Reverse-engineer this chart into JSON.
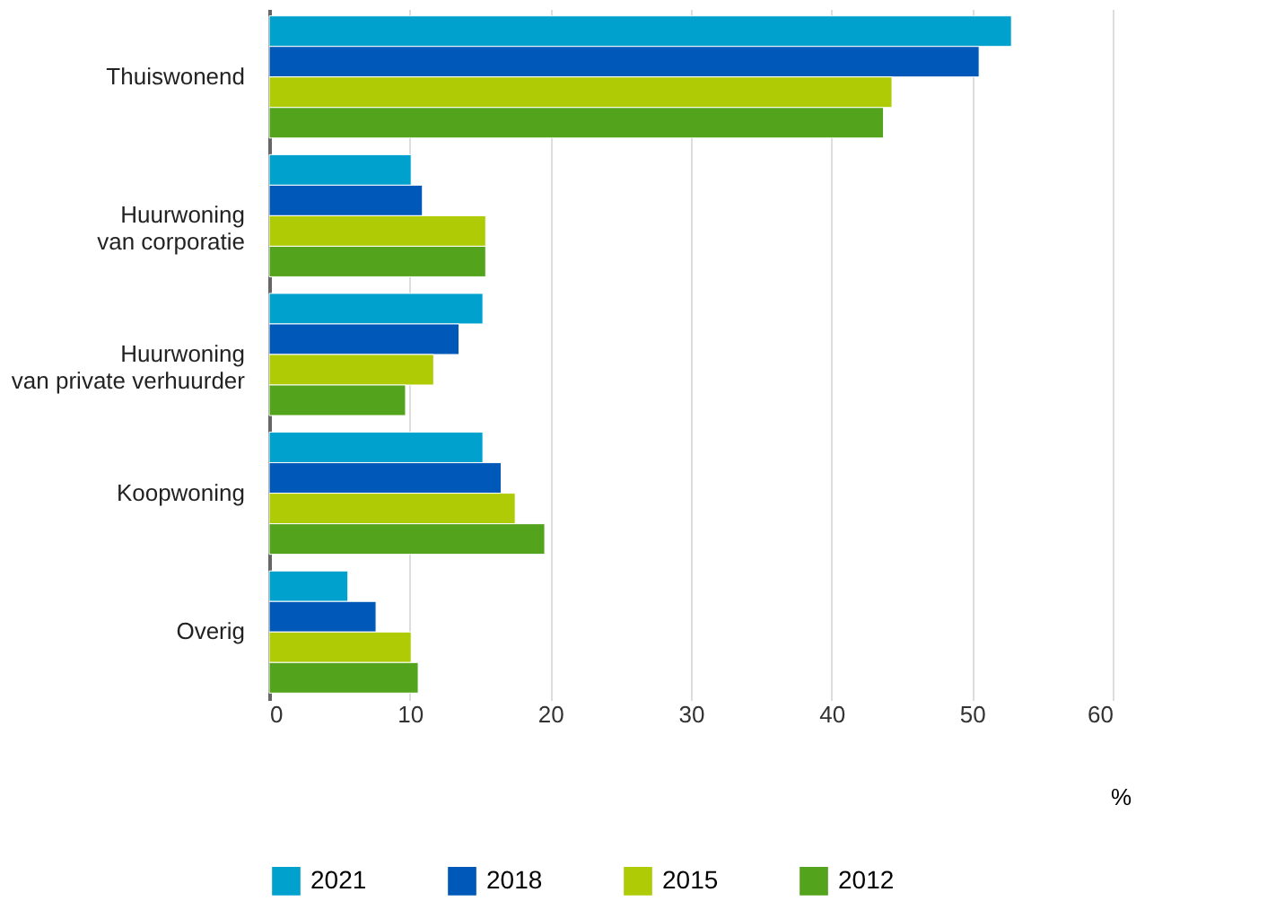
{
  "chart_data": {
    "type": "bar",
    "orientation": "horizontal",
    "categories": [
      "Thuiswonend",
      "Huurwoning\nvan corporatie",
      "Huurwoning\nvan private verhuurder",
      "Koopwoning",
      "Overig"
    ],
    "series": [
      {
        "name": "2021",
        "color": "#00a1cd",
        "values": [
          52.8,
          10.1,
          15.2,
          15.2,
          5.6
        ]
      },
      {
        "name": "2018",
        "color": "#0058b8",
        "values": [
          50.5,
          10.9,
          13.5,
          16.5,
          7.6
        ]
      },
      {
        "name": "2015",
        "color": "#afcb05",
        "values": [
          44.3,
          15.4,
          11.7,
          17.5,
          10.1
        ]
      },
      {
        "name": "2012",
        "color": "#53a31d",
        "values": [
          43.7,
          15.4,
          9.7,
          19.6,
          10.6
        ]
      }
    ],
    "xlabel": "%",
    "xlim": [
      0,
      60
    ],
    "xticks": [
      0,
      10,
      20,
      30,
      40,
      50,
      60
    ],
    "grid": "x",
    "legend": "bottom left"
  }
}
